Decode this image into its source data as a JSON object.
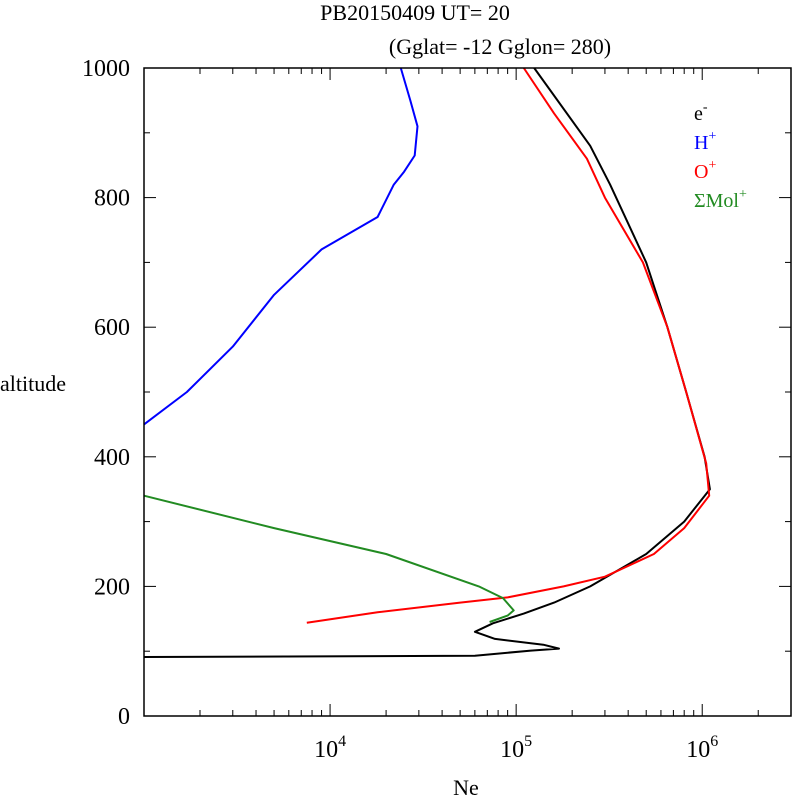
{
  "chart_data": {
    "type": "line",
    "title": "PB20150409   UT=  20",
    "subtitle": "(Gglat= -12   Gglon=  280)",
    "xlabel": "Ne",
    "ylabel": "altitude",
    "x_scale": "log",
    "xlim": [
      1000,
      3000000
    ],
    "ylim": [
      0,
      1000
    ],
    "x_tick_labels": [
      {
        "base": "10",
        "exp": "4",
        "value": 10000
      },
      {
        "base": "10",
        "exp": "5",
        "value": 100000
      },
      {
        "base": "10",
        "exp": "6",
        "value": 1000000
      }
    ],
    "y_ticks": [
      0,
      200,
      400,
      600,
      800,
      1000
    ],
    "legend_position": "top-right",
    "series": [
      {
        "name": "e",
        "sup": "-",
        "color": "#000000",
        "points": [
          [
            1000,
            91
          ],
          [
            60000,
            93
          ],
          [
            120000,
            101
          ],
          [
            170000,
            104
          ],
          [
            140000,
            110
          ],
          [
            77000,
            119
          ],
          [
            60000,
            130
          ],
          [
            75000,
            143
          ],
          [
            110000,
            158
          ],
          [
            160000,
            175
          ],
          [
            250000,
            200
          ],
          [
            500000,
            250
          ],
          [
            800000,
            300
          ],
          [
            1100000,
            350
          ],
          [
            1030000,
            400
          ],
          [
            820000,
            500
          ],
          [
            650000,
            600
          ],
          [
            500000,
            700
          ],
          [
            320000,
            820
          ],
          [
            250000,
            880
          ],
          [
            125000,
            1000
          ]
        ]
      },
      {
        "name": "H",
        "sup": "+",
        "color": "#0000ff",
        "points": [
          [
            1000,
            450
          ],
          [
            1700,
            500
          ],
          [
            3000,
            570
          ],
          [
            5000,
            650
          ],
          [
            9000,
            720
          ],
          [
            18000,
            770
          ],
          [
            22000,
            820
          ],
          [
            25000,
            840
          ],
          [
            28500,
            865
          ],
          [
            29500,
            910
          ],
          [
            27000,
            950
          ],
          [
            24000,
            1000
          ]
        ]
      },
      {
        "name": "O",
        "sup": "+",
        "color": "#ff0000",
        "points": [
          [
            7500,
            144
          ],
          [
            18000,
            160
          ],
          [
            50000,
            175
          ],
          [
            90000,
            183
          ],
          [
            180000,
            200
          ],
          [
            300000,
            215
          ],
          [
            550000,
            250
          ],
          [
            800000,
            290
          ],
          [
            1090000,
            340
          ],
          [
            1050000,
            390
          ],
          [
            820000,
            500
          ],
          [
            650000,
            600
          ],
          [
            480000,
            700
          ],
          [
            300000,
            800
          ],
          [
            240000,
            860
          ],
          [
            160000,
            930
          ],
          [
            110000,
            1000
          ]
        ]
      },
      {
        "name": "ΣMol",
        "sup": "+",
        "color": "#228b22",
        "points": [
          [
            1000,
            340
          ],
          [
            5000,
            290
          ],
          [
            20000,
            250
          ],
          [
            63000,
            200
          ],
          [
            85000,
            182
          ],
          [
            97000,
            163
          ],
          [
            90000,
            155
          ],
          [
            72000,
            145
          ]
        ]
      }
    ]
  }
}
